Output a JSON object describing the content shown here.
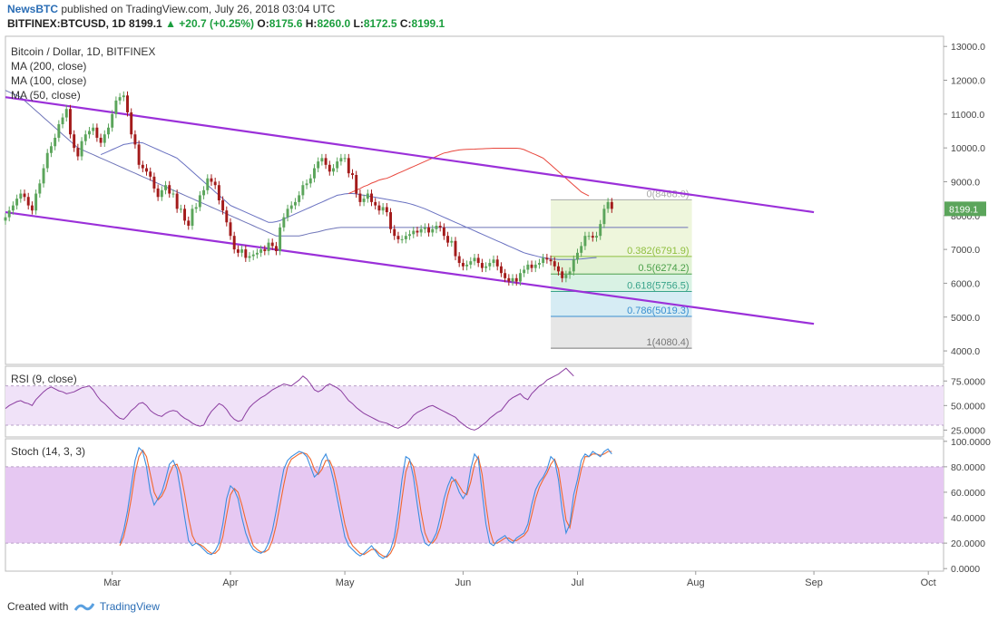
{
  "header": {
    "source": "NewsBTC",
    "published": "published on TradingView.com, July 26, 2018 03:04 UTC",
    "symbol": "BITFINEX:BTCUSD, 1D",
    "last": "8199.1",
    "change": "+20.7 (+0.25%)",
    "o_label": "O:",
    "o": "8175.6",
    "h_label": "H:",
    "h": "8260.0",
    "l_label": "L:",
    "l": "8172.5",
    "c_label": "C:",
    "c": "8199.1"
  },
  "footer": {
    "created_with": "Created with",
    "brand": "TradingView"
  },
  "colors": {
    "up": "#5ba55b",
    "down": "#a31b1b",
    "channel": "#9b30d9",
    "ma200": "#e8463c",
    "ma100": "#6e74b8",
    "ma50": "#6870c0",
    "rsi": "#8b3da0",
    "stoch_k": "#3b8ee0",
    "stoch_d": "#f0672d"
  },
  "chart_data": [
    {
      "type": "candlestick",
      "title": "Bitcoin / Dollar, 1D, BITFINEX",
      "legend": [
        "MA (200, close)",
        "MA (100, close)",
        "MA (50, close)"
      ],
      "ylim": [
        3600,
        13300
      ],
      "y_ticks": [
        "13000.0",
        "12000.0",
        "11000.0",
        "10000.0",
        "9000.0",
        "8000.0",
        "7000.0",
        "6000.0",
        "5000.0",
        "4000.0"
      ],
      "last_price_label": "8199.1",
      "x_ticks": [
        "Mar",
        "Apr",
        "May",
        "Jun",
        "Jul",
        "Aug",
        "Sep",
        "Oct"
      ],
      "x_tick_dates": [
        "2018-03-01",
        "2018-04-01",
        "2018-05-01",
        "2018-06-01",
        "2018-07-01",
        "2018-08-01",
        "2018-09-01",
        "2018-10-01"
      ],
      "x_range": [
        "2018-02-01",
        "2018-10-05"
      ],
      "close": [
        7950,
        8150,
        8300,
        8500,
        8650,
        8550,
        8300,
        8150,
        8650,
        8950,
        9400,
        9850,
        10050,
        10300,
        10700,
        10900,
        11150,
        10400,
        10000,
        9750,
        10200,
        10400,
        10500,
        10600,
        10300,
        10150,
        10400,
        10600,
        11000,
        11400,
        11500,
        11550,
        11050,
        10400,
        10100,
        9500,
        9400,
        9300,
        9150,
        8800,
        8550,
        8750,
        8900,
        8650,
        8650,
        8200,
        8200,
        7850,
        7700,
        8200,
        8250,
        8600,
        8750,
        9100,
        9000,
        8900,
        8450,
        8150,
        7800,
        7400,
        7000,
        6900,
        7000,
        6750,
        6800,
        6850,
        6900,
        7000,
        6950,
        7200,
        7100,
        6950,
        7650,
        7950,
        8200,
        8300,
        8400,
        8600,
        8900,
        8950,
        9100,
        9400,
        9600,
        9700,
        9500,
        9300,
        9400,
        9600,
        9700,
        9700,
        9250,
        9200,
        8650,
        8400,
        8500,
        8650,
        8400,
        8300,
        8150,
        8250,
        8100,
        7600,
        7400,
        7300,
        7300,
        7400,
        7450,
        7550,
        7500,
        7600,
        7650,
        7500,
        7600,
        7700,
        7650,
        7400,
        7200,
        7250,
        6800,
        6600,
        6500,
        6550,
        6650,
        6750,
        6600,
        6450,
        6500,
        6600,
        6700,
        6500,
        6300,
        6150,
        6050,
        6150,
        6050,
        6300,
        6400,
        6550,
        6450,
        6550,
        6600,
        6750,
        6700,
        6650,
        6500,
        6350,
        6150,
        6250,
        6350,
        6700,
        6900,
        7100,
        7400,
        7400,
        7350,
        7400,
        7750,
        8200,
        8400,
        8199
      ],
      "ma200": [
        8650,
        8700,
        8750,
        8800,
        8860,
        8900,
        8960,
        9000,
        9050,
        9080,
        9100,
        9150,
        9200,
        9250,
        9300,
        9350,
        9400,
        9450,
        9500,
        9550,
        9600,
        9650,
        9700,
        9750,
        9800,
        9850,
        9870,
        9900,
        9920,
        9940,
        9950,
        9955,
        9960,
        9965,
        9970,
        9975,
        9980,
        9985,
        9990,
        9990,
        9990,
        9990,
        9990,
        9990,
        9990,
        9980,
        9950,
        9900,
        9850,
        9800,
        9750,
        9700,
        9600,
        9500,
        9400,
        9300,
        9200,
        9100,
        9000,
        8900,
        8800,
        8700,
        8640,
        8580
      ],
      "ma200_start_index": 90,
      "ma100": [
        11700,
        11650,
        11600,
        11550,
        11500,
        11400,
        11300,
        11200,
        11100,
        11000,
        10900,
        10800,
        10700,
        10600,
        10500,
        10400,
        10300,
        10200,
        10100,
        10000,
        9950,
        9900,
        9850,
        9800,
        9750,
        9700,
        9650,
        9600,
        9550,
        9500,
        9450,
        9400,
        9350,
        9300,
        9250,
        9200,
        9150,
        9100,
        9050,
        9000,
        8950,
        8900,
        8850,
        8800,
        8750,
        8700,
        8650,
        8600,
        8550,
        8500,
        8450,
        8400,
        8350,
        8300,
        8250,
        8200,
        8150,
        8100,
        8050,
        8000,
        7950,
        7900,
        7850,
        7800,
        7750,
        7700,
        7650,
        7600,
        7550,
        7500,
        7450,
        7400,
        7400,
        7400,
        7400,
        7400,
        7400,
        7400,
        7420,
        7450,
        7480,
        7500,
        7520,
        7550,
        7580,
        7600,
        7620,
        7640,
        7650,
        7650,
        7650,
        7650,
        7650,
        7650,
        7650,
        7650,
        7650,
        7650,
        7650,
        7650,
        7650,
        7650,
        7650,
        7650,
        7650,
        7650,
        7650,
        7650,
        7650,
        7650,
        7650,
        7650,
        7650,
        7650,
        7650,
        7650,
        7650,
        7650,
        7650,
        7650,
        7650,
        7650,
        7650,
        7650,
        7650,
        7650,
        7650,
        7650,
        7650,
        7650,
        7650,
        7650,
        7650,
        7650,
        7650,
        7650,
        7650,
        7650,
        7650,
        7650,
        7650,
        7650,
        7650,
        7650,
        7650,
        7650,
        7650,
        7650,
        7650,
        7650,
        7650,
        7650,
        7650,
        7650,
        7650,
        7650,
        7650,
        7650,
        7650,
        7650,
        7650,
        7650,
        7650,
        7650,
        7650,
        7650,
        7650,
        7650,
        7650,
        7650,
        7650,
        7650,
        7650,
        7650,
        7650,
        7650,
        7650,
        7650,
        7650,
        7650
      ],
      "ma50": [
        9800,
        9850,
        9900,
        9950,
        10000,
        10050,
        10100,
        10120,
        10140,
        10150,
        10160,
        10150,
        10100,
        10050,
        10000,
        9950,
        9900,
        9850,
        9800,
        9750,
        9700,
        9600,
        9500,
        9400,
        9300,
        9200,
        9100,
        9000,
        8900,
        8800,
        8700,
        8600,
        8500,
        8400,
        8300,
        8250,
        8200,
        8150,
        8100,
        8050,
        8000,
        7950,
        7900,
        7850,
        7800,
        7800,
        7820,
        7850,
        7900,
        7950,
        8000,
        8050,
        8100,
        8150,
        8200,
        8250,
        8300,
        8350,
        8400,
        8450,
        8500,
        8550,
        8600,
        8620,
        8640,
        8650,
        8650,
        8640,
        8620,
        8600,
        8580,
        8560,
        8540,
        8520,
        8500,
        8480,
        8460,
        8440,
        8420,
        8400,
        8380,
        8350,
        8320,
        8280,
        8240,
        8200,
        8150,
        8100,
        8050,
        8000,
        7950,
        7900,
        7850,
        7800,
        7750,
        7700,
        7650,
        7600,
        7550,
        7500,
        7450,
        7400,
        7350,
        7300,
        7250,
        7200,
        7150,
        7100,
        7050,
        7000,
        6950,
        6900,
        6870,
        6840,
        6810,
        6780,
        6760,
        6740,
        6720,
        6710,
        6700,
        6700,
        6700,
        6700,
        6700,
        6710,
        6720,
        6730,
        6740,
        6750,
        6760
      ],
      "ma50_start_index": 25,
      "channel_upper": [
        [
          "2018-02-01",
          11500
        ],
        [
          "2018-09-01",
          8100
        ]
      ],
      "channel_lower": [
        [
          "2018-02-01",
          8100
        ],
        [
          "2018-09-01",
          4800
        ]
      ],
      "fibonacci": {
        "start": "2018-06-24",
        "end": "2018-07-31",
        "levels": [
          {
            "label": "0(8468.0)",
            "value": 8468.0,
            "color": "#aaaaaa",
            "fill": "#eef6dc"
          },
          {
            "label": "0.382(6791.9)",
            "value": 6791.9,
            "color": "#8fbf3f",
            "fill": "#e2f2d4"
          },
          {
            "label": "0.5(6274.2)",
            "value": 6274.2,
            "color": "#4aa04a",
            "fill": "#d9f2e4"
          },
          {
            "label": "0.618(5756.5)",
            "value": 5756.5,
            "color": "#38a38a",
            "fill": "#d6ecf4"
          },
          {
            "label": "0.786(5019.3)",
            "value": 5019.3,
            "color": "#3a8fd0",
            "fill": "#e6e6e6"
          },
          {
            "label": "1(4080.4)",
            "value": 4080.4,
            "color": "#777777",
            "fill": null
          }
        ]
      }
    },
    {
      "type": "line",
      "title": "RSI (9, close)",
      "ylim": [
        18,
        90
      ],
      "y_ticks": [
        "75.0000",
        "50.0000",
        "25.0000"
      ],
      "band": [
        30,
        70
      ],
      "values": [
        47,
        50,
        52,
        54,
        55,
        53,
        52,
        50,
        56,
        60,
        64,
        67,
        69,
        67,
        65,
        64,
        62,
        63,
        64,
        66,
        68,
        69,
        70,
        66,
        60,
        55,
        52,
        48,
        44,
        40,
        37,
        36,
        40,
        45,
        48,
        52,
        53,
        50,
        45,
        42,
        40,
        39,
        42,
        44,
        45,
        44,
        40,
        37,
        35,
        32,
        30,
        29,
        30,
        38,
        44,
        48,
        52,
        50,
        46,
        40,
        36,
        34,
        35,
        42,
        48,
        52,
        55,
        58,
        60,
        63,
        66,
        68,
        70,
        72,
        71,
        70,
        73,
        76,
        80,
        77,
        72,
        66,
        64,
        66,
        70,
        72,
        70,
        68,
        65,
        60,
        55,
        52,
        48,
        45,
        42,
        40,
        38,
        36,
        34,
        33,
        32,
        30,
        28,
        27,
        29,
        31,
        35,
        40,
        43,
        45,
        47,
        49,
        50,
        48,
        46,
        44,
        42,
        40,
        38,
        34,
        31,
        28,
        26,
        25,
        27,
        30,
        33,
        37,
        40,
        43,
        45,
        50,
        55,
        58,
        60,
        62,
        58,
        56,
        62,
        66,
        70,
        72,
        76,
        78,
        80,
        82,
        85,
        88,
        84,
        80
      ]
    },
    {
      "type": "line",
      "title": "Stoch (14, 3, 3)",
      "ylim": [
        -2,
        102
      ],
      "y_ticks": [
        "100.0000",
        "80.0000",
        "60.0000",
        "40.0000",
        "20.0000",
        "0.0000"
      ],
      "band": [
        20,
        80
      ],
      "series": [
        {
          "name": "K",
          "values": [
            20,
            30,
            45,
            65,
            85,
            95,
            92,
            80,
            60,
            50,
            55,
            60,
            70,
            82,
            85,
            78,
            60,
            40,
            22,
            18,
            20,
            18,
            15,
            12,
            11,
            14,
            20,
            35,
            55,
            65,
            62,
            55,
            40,
            28,
            20,
            15,
            13,
            12,
            14,
            20,
            30,
            45,
            62,
            78,
            85,
            88,
            90,
            92,
            91,
            88,
            80,
            72,
            75,
            85,
            90,
            82,
            70,
            55,
            40,
            25,
            18,
            15,
            12,
            10,
            12,
            15,
            18,
            14,
            10,
            8,
            10,
            15,
            25,
            45,
            70,
            88,
            86,
            72,
            50,
            30,
            20,
            18,
            22,
            28,
            40,
            55,
            65,
            72,
            68,
            60,
            55,
            60,
            78,
            90,
            86,
            60,
            35,
            20,
            18,
            22,
            24,
            26,
            22,
            20,
            24,
            26,
            28,
            35,
            50,
            62,
            68,
            72,
            78,
            88,
            85,
            70,
            45,
            28,
            35,
            58,
            70,
            85,
            90,
            88,
            92,
            90,
            88,
            92,
            94,
            90
          ]
        },
        {
          "name": "D",
          "values": [
            18,
            25,
            38,
            55,
            75,
            88,
            93,
            88,
            74,
            60,
            54,
            57,
            63,
            74,
            81,
            82,
            74,
            58,
            40,
            26,
            20,
            19,
            17,
            14,
            12,
            12,
            15,
            25,
            42,
            58,
            63,
            60,
            50,
            38,
            27,
            18,
            15,
            13,
            13,
            15,
            22,
            34,
            50,
            66,
            80,
            86,
            88,
            90,
            91,
            90,
            86,
            78,
            74,
            78,
            85,
            85,
            78,
            65,
            50,
            35,
            24,
            18,
            15,
            12,
            11,
            13,
            15,
            15,
            12,
            10,
            9,
            12,
            18,
            32,
            55,
            76,
            85,
            80,
            64,
            44,
            28,
            21,
            20,
            24,
            32,
            45,
            58,
            68,
            70,
            65,
            60,
            58,
            68,
            82,
            88,
            74,
            50,
            30,
            20,
            20,
            22,
            24,
            24,
            22,
            22,
            24,
            26,
            30,
            42,
            55,
            64,
            70,
            75,
            82,
            86,
            78,
            58,
            38,
            32,
            48,
            64,
            78,
            88,
            88,
            90,
            90,
            89,
            90,
            92,
            92
          ]
        }
      ]
    }
  ]
}
